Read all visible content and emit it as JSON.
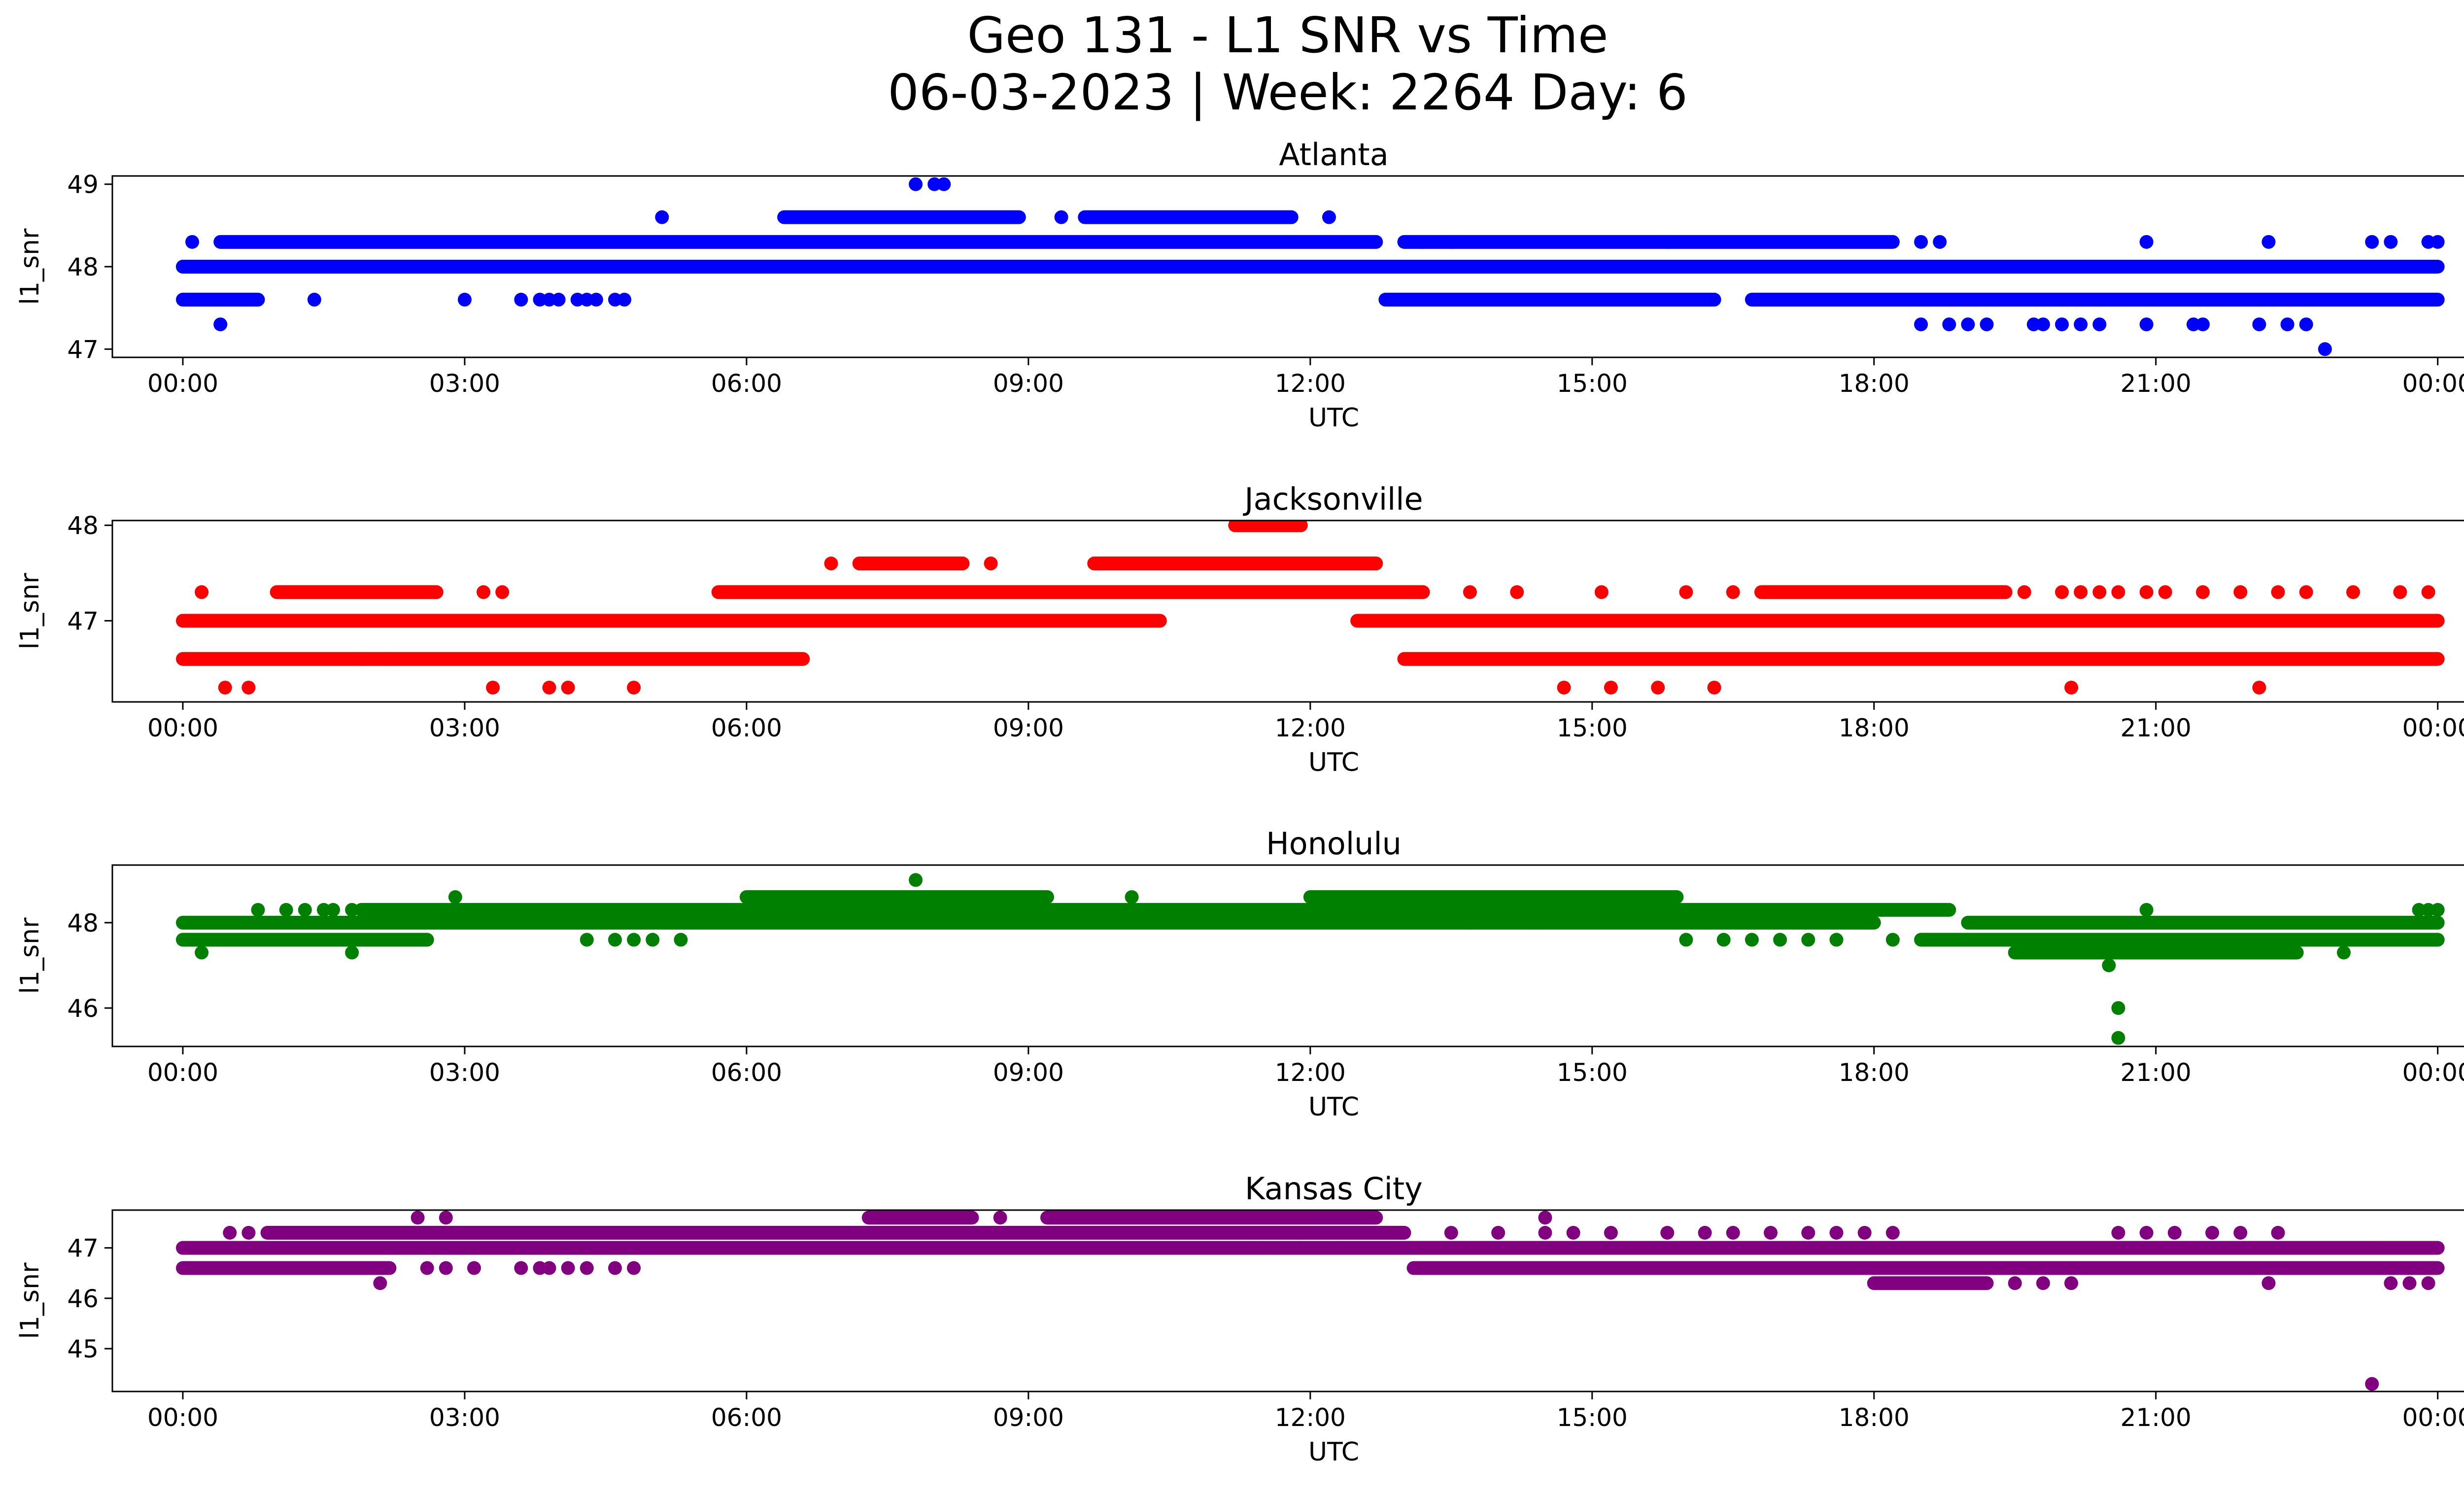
{
  "figure": {
    "title_line1": "Geo 131 - L1 SNR vs Time",
    "title_line2": "06-03-2023 | Week: 2264 Day: 6"
  },
  "chart_data": [
    {
      "type": "scatter",
      "title": "Atlanta",
      "xlabel": "UTC",
      "ylabel": "l1_snr",
      "color": "#0000ff",
      "x_unit": "hours UTC",
      "xlim": [
        -0.75,
        25.25
      ],
      "x_ticks": [
        "00:00",
        "03:00",
        "06:00",
        "09:00",
        "12:00",
        "15:00",
        "18:00",
        "21:00",
        "00:00"
      ],
      "ylim": [
        46.9,
        49.1
      ],
      "y_ticks": [
        "47",
        "48",
        "49"
      ],
      "y_tick_values": [
        47,
        48,
        49
      ],
      "bands": [
        {
          "y": 48.0,
          "from": 0.0,
          "to": 24.0
        },
        {
          "y": 48.0,
          "from": 0.0,
          "to": 7.0
        },
        {
          "y": 48.3,
          "from": 0.4,
          "to": 12.7
        },
        {
          "y": 48.3,
          "from": 13.0,
          "to": 18.2
        },
        {
          "y": 47.6,
          "from": 0.0,
          "to": 0.8
        },
        {
          "y": 47.6,
          "from": 12.8,
          "to": 16.3
        },
        {
          "y": 47.6,
          "from": 16.7,
          "to": 24.0
        },
        {
          "y": 48.6,
          "from": 6.4,
          "to": 8.9
        },
        {
          "y": 48.6,
          "from": 9.6,
          "to": 11.8
        },
        {
          "y": 48.0,
          "from": 8.8,
          "to": 11.1
        }
      ],
      "scatter": [
        {
          "y": 48.3,
          "x": [
            0.1,
            13.2,
            13.5,
            15.8,
            18.5,
            18.7,
            20.9,
            22.2,
            23.3,
            23.5,
            23.9,
            24.0
          ]
        },
        {
          "y": 47.6,
          "x": [
            1.4,
            3.0,
            3.6,
            3.8,
            3.9,
            4.0,
            4.2,
            4.3,
            4.4,
            4.6,
            4.7
          ]
        },
        {
          "y": 47.3,
          "x": [
            0.4,
            18.5,
            18.8,
            19.0,
            19.2,
            19.7,
            19.8,
            20.0,
            20.2,
            20.4,
            20.9,
            21.4,
            21.5,
            22.1,
            22.4,
            22.6
          ]
        },
        {
          "y": 48.0,
          "x": [
            7.3,
            11.4,
            11.7
          ]
        },
        {
          "y": 48.6,
          "x": [
            5.1,
            9.35,
            12.2
          ]
        },
        {
          "y": 49.0,
          "x": [
            7.8,
            8.0,
            8.1
          ]
        },
        {
          "y": 47.0,
          "x": [
            22.8
          ]
        }
      ]
    },
    {
      "type": "scatter",
      "title": "Jacksonville",
      "xlabel": "UTC",
      "ylabel": "l1_snr",
      "color": "#ff0000",
      "x_unit": "hours UTC",
      "xlim": [
        -0.75,
        25.25
      ],
      "x_ticks": [
        "00:00",
        "03:00",
        "06:00",
        "09:00",
        "12:00",
        "15:00",
        "18:00",
        "21:00",
        "00:00"
      ],
      "ylim": [
        46.15,
        48.05
      ],
      "y_ticks": [
        "47",
        "48"
      ],
      "y_tick_values": [
        47,
        48
      ],
      "bands": [
        {
          "y": 47.0,
          "from": 0.0,
          "to": 10.4
        },
        {
          "y": 47.0,
          "from": 12.5,
          "to": 24.0
        },
        {
          "y": 46.6,
          "from": 0.0,
          "to": 6.6
        },
        {
          "y": 46.6,
          "from": 13.0,
          "to": 24.0
        },
        {
          "y": 47.3,
          "from": 1.0,
          "to": 2.7
        },
        {
          "y": 47.3,
          "from": 5.7,
          "to": 13.2
        },
        {
          "y": 47.3,
          "from": 16.8,
          "to": 19.4
        },
        {
          "y": 47.6,
          "from": 7.2,
          "to": 8.3
        },
        {
          "y": 47.6,
          "from": 9.7,
          "to": 12.7
        },
        {
          "y": 48.0,
          "from": 11.2,
          "to": 11.9
        }
      ],
      "scatter": [
        {
          "y": 47.3,
          "x": [
            0.2,
            3.2,
            3.4,
            13.7,
            14.2,
            15.1,
            16.0,
            16.5,
            19.6,
            20.0,
            20.2,
            20.4,
            20.6,
            20.9,
            21.1,
            21.5,
            21.9,
            22.3,
            22.6,
            23.1,
            23.6,
            23.9
          ]
        },
        {
          "y": 46.6,
          "x": [
            1.9,
            2.2
          ]
        },
        {
          "y": 46.3,
          "x": [
            0.45,
            0.7,
            3.3,
            3.9,
            4.1,
            4.8,
            14.7,
            15.2,
            15.7,
            16.3,
            20.1,
            22.1
          ]
        },
        {
          "y": 47.6,
          "x": [
            6.9,
            8.6
          ]
        }
      ]
    },
    {
      "type": "scatter",
      "title": "Honolulu",
      "xlabel": "UTC",
      "ylabel": "l1_snr",
      "color": "#008000",
      "x_unit": "hours UTC",
      "xlim": [
        -0.75,
        25.25
      ],
      "x_ticks": [
        "00:00",
        "03:00",
        "06:00",
        "09:00",
        "12:00",
        "15:00",
        "18:00",
        "21:00",
        "00:00"
      ],
      "ylim": [
        45.1,
        49.35
      ],
      "y_ticks": [
        "46",
        "48"
      ],
      "y_tick_values": [
        46,
        48
      ],
      "bands": [
        {
          "y": 48.0,
          "from": 0.0,
          "to": 18.0
        },
        {
          "y": 48.0,
          "from": 19.0,
          "to": 24.0
        },
        {
          "y": 47.6,
          "from": 0.0,
          "to": 2.6
        },
        {
          "y": 47.6,
          "from": 18.5,
          "to": 24.0
        },
        {
          "y": 48.3,
          "from": 1.9,
          "to": 18.8
        },
        {
          "y": 48.6,
          "from": 6.0,
          "to": 9.2
        },
        {
          "y": 48.6,
          "from": 12.0,
          "to": 15.9
        },
        {
          "y": 47.3,
          "from": 19.5,
          "to": 22.5
        }
      ],
      "scatter": [
        {
          "y": 48.3,
          "x": [
            0.8,
            1.1,
            1.3,
            1.5,
            1.6,
            1.8,
            23.8,
            23.9,
            24.0,
            20.9
          ]
        },
        {
          "y": 47.3,
          "x": [
            0.2,
            1.8,
            19.6,
            23.0
          ]
        },
        {
          "y": 47.6,
          "x": [
            4.3,
            4.6,
            4.8,
            5.0,
            5.3,
            16.0,
            16.4,
            16.7,
            17.0,
            17.3,
            17.6,
            18.2
          ]
        },
        {
          "y": 48.6,
          "x": [
            2.9,
            10.1
          ]
        },
        {
          "y": 49.0,
          "x": [
            7.8
          ]
        },
        {
          "y": 48.0,
          "x": [
            13.7,
            14.4
          ]
        },
        {
          "y": 47.0,
          "x": [
            20.5
          ]
        },
        {
          "y": 46.0,
          "x": [
            20.6
          ]
        },
        {
          "y": 45.3,
          "x": [
            20.6
          ]
        }
      ]
    },
    {
      "type": "scatter",
      "title": "Kansas City",
      "xlabel": "UTC",
      "ylabel": "l1_snr",
      "color": "#800080",
      "x_unit": "hours UTC",
      "xlim": [
        -0.75,
        25.25
      ],
      "x_ticks": [
        "00:00",
        "03:00",
        "06:00",
        "09:00",
        "12:00",
        "15:00",
        "18:00",
        "21:00",
        "00:00"
      ],
      "ylim": [
        44.15,
        47.75
      ],
      "y_ticks": [
        "45",
        "46",
        "47"
      ],
      "y_tick_values": [
        45,
        46,
        47
      ],
      "bands": [
        {
          "y": 47.0,
          "from": 0.0,
          "to": 24.0
        },
        {
          "y": 46.6,
          "from": 0.0,
          "to": 2.2
        },
        {
          "y": 46.6,
          "from": 13.1,
          "to": 24.0
        },
        {
          "y": 47.3,
          "from": 0.9,
          "to": 13.0
        },
        {
          "y": 47.6,
          "from": 7.3,
          "to": 8.4
        },
        {
          "y": 47.6,
          "from": 9.2,
          "to": 12.7
        },
        {
          "y": 46.3,
          "from": 18.0,
          "to": 19.2
        }
      ],
      "scatter": [
        {
          "y": 46.6,
          "x": [
            2.6,
            2.8,
            3.1,
            3.6,
            3.8,
            3.9,
            4.1,
            4.3,
            4.6,
            4.8
          ]
        },
        {
          "y": 46.3,
          "x": [
            2.1,
            19.5,
            19.8,
            20.1,
            22.2,
            23.5,
            23.7,
            23.9
          ]
        },
        {
          "y": 47.3,
          "x": [
            0.5,
            0.7,
            13.5,
            14.0,
            14.5,
            14.8,
            15.2,
            15.8,
            16.2,
            16.5,
            16.9,
            17.3,
            17.6,
            17.9,
            18.2,
            20.6,
            20.9,
            21.2,
            21.6,
            21.9,
            22.3
          ]
        },
        {
          "y": 47.6,
          "x": [
            2.5,
            2.8,
            8.7,
            14.5
          ]
        },
        {
          "y": 47.0,
          "x": [
            11.5,
            11.9,
            12.3
          ]
        },
        {
          "y": 44.3,
          "x": [
            23.3
          ]
        }
      ]
    }
  ]
}
